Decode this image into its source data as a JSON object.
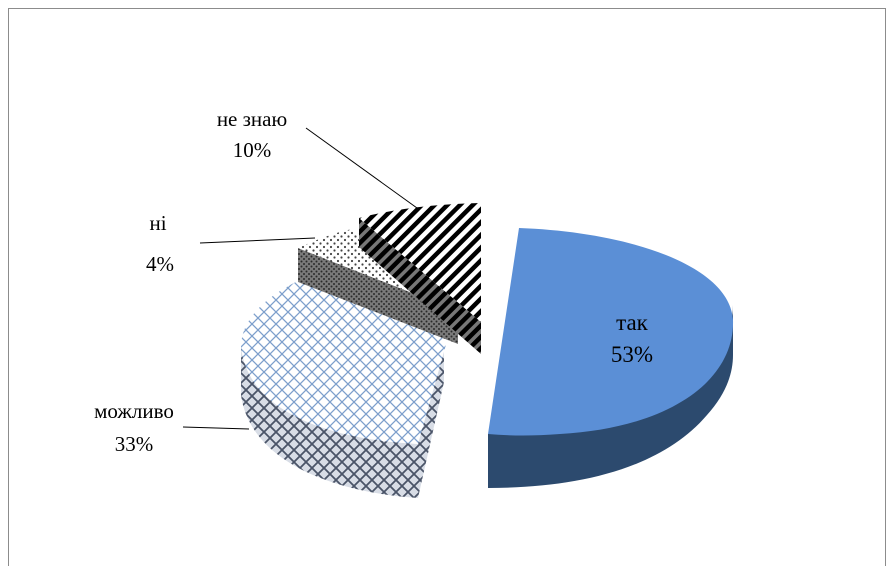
{
  "chart_data": {
    "type": "pie",
    "style": "3d-exploded",
    "title": "",
    "slices": [
      {
        "category": "так",
        "percent_label": "53%",
        "value": 53,
        "color": "#5b8fd6",
        "fill": "solid"
      },
      {
        "category": "можливо",
        "percent_label": "33%",
        "value": 33,
        "color": "#4a6b96",
        "fill": "crosshatch"
      },
      {
        "category": "ні",
        "percent_label": "4%",
        "value": 4,
        "color": "#555555",
        "fill": "dots"
      },
      {
        "category": "не знаю",
        "percent_label": "10%",
        "value": 10,
        "color": "#000000",
        "fill": "diagonal-stripes"
      }
    ],
    "legend": "none"
  }
}
